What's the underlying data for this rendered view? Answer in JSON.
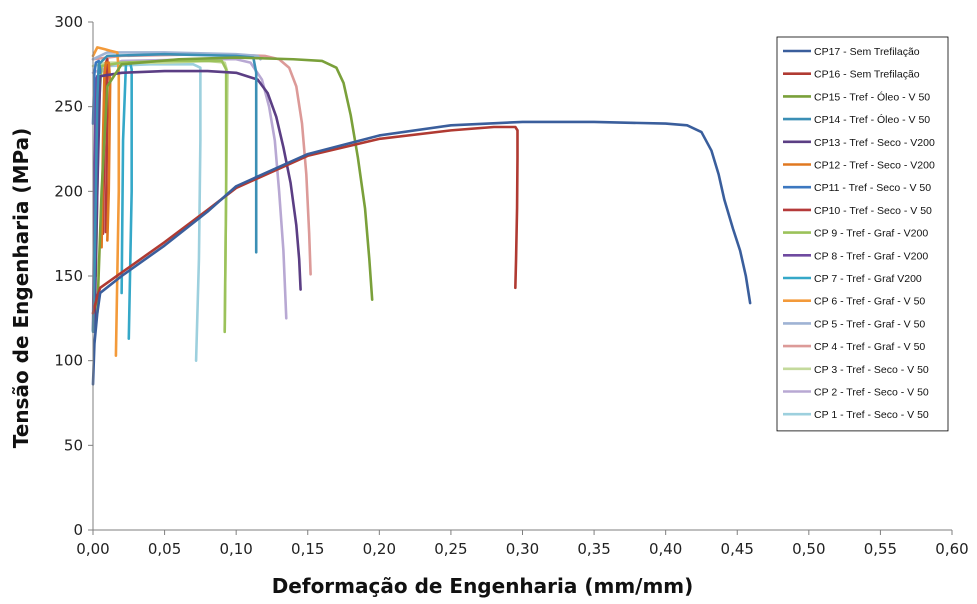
{
  "chart_data": {
    "type": "line",
    "title": "",
    "xlabel": "Deformação de Engenharia (mm/mm)",
    "ylabel": "Tensão de Engenharia (MPa)",
    "xlim": [
      0,
      0.6
    ],
    "ylim": [
      0,
      300
    ],
    "x_ticks": [
      "0,00",
      "0,05",
      "0,10",
      "0,15",
      "0,20",
      "0,25",
      "0,30",
      "0,35",
      "0,40",
      "0,45",
      "0,50",
      "0,55",
      "0,60"
    ],
    "y_ticks": [
      "0",
      "50",
      "100",
      "150",
      "200",
      "250",
      "300"
    ],
    "grid": false,
    "legend_position": "right",
    "series": [
      {
        "name": "CP17 - Sem Trefilação",
        "color": "#3A5E9C",
        "points": [
          [
            0.0,
            86
          ],
          [
            0.001,
            110
          ],
          [
            0.003,
            128
          ],
          [
            0.005,
            140
          ],
          [
            0.02,
            150
          ],
          [
            0.05,
            168
          ],
          [
            0.08,
            188
          ],
          [
            0.1,
            203
          ],
          [
            0.15,
            222
          ],
          [
            0.2,
            233
          ],
          [
            0.25,
            239
          ],
          [
            0.3,
            241
          ],
          [
            0.35,
            241
          ],
          [
            0.4,
            240
          ],
          [
            0.415,
            239
          ],
          [
            0.425,
            235
          ],
          [
            0.432,
            224
          ],
          [
            0.437,
            210
          ],
          [
            0.441,
            195
          ],
          [
            0.447,
            178
          ],
          [
            0.452,
            165
          ],
          [
            0.456,
            150
          ],
          [
            0.459,
            134
          ]
        ]
      },
      {
        "name": "CP16 - Sem Trefilação",
        "color": "#B03A32",
        "points": [
          [
            0.0,
            128
          ],
          [
            0.003,
            138
          ],
          [
            0.005,
            143
          ],
          [
            0.02,
            152
          ],
          [
            0.05,
            170
          ],
          [
            0.08,
            189
          ],
          [
            0.1,
            202
          ],
          [
            0.15,
            221
          ],
          [
            0.2,
            231
          ],
          [
            0.25,
            236
          ],
          [
            0.28,
            238
          ],
          [
            0.295,
            238
          ],
          [
            0.2965,
            236
          ],
          [
            0.2965,
            220
          ],
          [
            0.2962,
            190
          ],
          [
            0.2955,
            160
          ],
          [
            0.295,
            143
          ]
        ]
      },
      {
        "name": "CP15 - Tref - Óleo - V 50",
        "color": "#7AA03A",
        "points": [
          [
            0.003,
            128
          ],
          [
            0.006,
            200
          ],
          [
            0.01,
            262
          ],
          [
            0.02,
            275
          ],
          [
            0.06,
            278
          ],
          [
            0.1,
            279
          ],
          [
            0.14,
            278
          ],
          [
            0.16,
            277
          ],
          [
            0.17,
            273
          ],
          [
            0.175,
            264
          ],
          [
            0.18,
            245
          ],
          [
            0.185,
            220
          ],
          [
            0.19,
            190
          ],
          [
            0.193,
            160
          ],
          [
            0.195,
            136
          ]
        ]
      },
      {
        "name": "CP14 - Tref - Óleo - V 50",
        "color": "#3B8FB5",
        "points": [
          [
            0.0,
            117
          ],
          [
            0.001,
            150
          ],
          [
            0.002,
            200
          ],
          [
            0.003,
            255
          ],
          [
            0.004,
            275
          ],
          [
            0.01,
            280
          ],
          [
            0.05,
            281
          ],
          [
            0.1,
            280
          ],
          [
            0.112,
            279
          ],
          [
            0.114,
            270
          ],
          [
            0.114,
            220
          ],
          [
            0.114,
            164
          ]
        ]
      },
      {
        "name": "CP13 - Tref - Seco - V200",
        "color": "#5B3E84",
        "points": [
          [
            0.001,
            117
          ],
          [
            0.003,
            200
          ],
          [
            0.005,
            268
          ],
          [
            0.02,
            270
          ],
          [
            0.05,
            271
          ],
          [
            0.08,
            271
          ],
          [
            0.1,
            270
          ],
          [
            0.115,
            266
          ],
          [
            0.122,
            258
          ],
          [
            0.128,
            244
          ],
          [
            0.133,
            226
          ],
          [
            0.138,
            205
          ],
          [
            0.142,
            180
          ],
          [
            0.144,
            160
          ],
          [
            0.145,
            142
          ]
        ]
      },
      {
        "name": "CP12 - Tref - Seco - V200",
        "color": "#E07820",
        "points": [
          [
            0.006,
            167
          ],
          [
            0.007,
            230
          ],
          [
            0.008,
            270
          ],
          [
            0.009,
            276
          ],
          [
            0.011,
            276
          ],
          [
            0.012,
            265
          ],
          [
            0.011,
            200
          ],
          [
            0.01,
            171
          ]
        ]
      },
      {
        "name": "CP11 - Tref - Seco - V 50",
        "color": "#3C78C0",
        "points": [
          [
            0.0,
            240
          ],
          [
            0.001,
            270
          ],
          [
            0.002,
            276
          ],
          [
            0.004,
            277
          ],
          [
            0.005,
            272
          ],
          [
            0.005,
            270
          ]
        ]
      },
      {
        "name": "CP10 - Tref - Seco - V 50",
        "color": "#B53A3A",
        "points": [
          [
            0.007,
            175
          ],
          [
            0.008,
            240
          ],
          [
            0.009,
            276
          ],
          [
            0.01,
            278
          ],
          [
            0.01,
            250
          ],
          [
            0.009,
            176
          ]
        ]
      },
      {
        "name": "CP 9 - Tref - Graf - V200",
        "color": "#9BC25A",
        "points": [
          [
            0.002,
            150
          ],
          [
            0.004,
            250
          ],
          [
            0.006,
            274
          ],
          [
            0.02,
            276
          ],
          [
            0.05,
            277
          ],
          [
            0.08,
            277
          ],
          [
            0.09,
            277
          ],
          [
            0.093,
            272
          ],
          [
            0.093,
            200
          ],
          [
            0.092,
            117
          ]
        ]
      },
      {
        "name": "CP 8 - Tref - Graf - V200",
        "color": "#6F4AA0",
        "points": [
          [
            0.0,
            118
          ],
          [
            0.001,
            200
          ],
          [
            0.002,
            265
          ],
          [
            0.003,
            268
          ]
        ]
      },
      {
        "name": "CP 7 - Tref - Graf V200",
        "color": "#35A8C8",
        "points": [
          [
            0.02,
            140
          ],
          [
            0.021,
            230
          ],
          [
            0.023,
            275
          ],
          [
            0.026,
            276
          ],
          [
            0.027,
            272
          ],
          [
            0.027,
            200
          ],
          [
            0.025,
            113
          ]
        ]
      },
      {
        "name": "CP 6 - Tref - Graf - V 50",
        "color": "#F39A3A",
        "points": [
          [
            0.0,
            280
          ],
          [
            0.003,
            285
          ],
          [
            0.008,
            284
          ],
          [
            0.012,
            283
          ],
          [
            0.017,
            282
          ],
          [
            0.018,
            270
          ],
          [
            0.018,
            200
          ],
          [
            0.016,
            103
          ]
        ]
      },
      {
        "name": "CP 5 - Tref - Graf - V 50",
        "color": "#9FB3D4",
        "points": [
          [
            0.0,
            278
          ],
          [
            0.01,
            282
          ],
          [
            0.05,
            282
          ],
          [
            0.1,
            281
          ],
          [
            0.115,
            280
          ],
          [
            0.117,
            278
          ]
        ]
      },
      {
        "name": "CP 4 - Tref - Graf - V 50",
        "color": "#DC9A98",
        "points": [
          [
            0.0,
            278
          ],
          [
            0.02,
            280
          ],
          [
            0.08,
            281
          ],
          [
            0.12,
            280
          ],
          [
            0.13,
            278
          ],
          [
            0.137,
            273
          ],
          [
            0.142,
            262
          ],
          [
            0.146,
            240
          ],
          [
            0.149,
            210
          ],
          [
            0.151,
            175
          ],
          [
            0.152,
            151
          ]
        ]
      },
      {
        "name": "CP 3 - Tref - Seco - V 50",
        "color": "#C4DA9C",
        "points": [
          [
            0.0,
            274
          ],
          [
            0.01,
            276
          ],
          [
            0.05,
            276
          ],
          [
            0.08,
            277
          ],
          [
            0.092,
            276
          ],
          [
            0.094,
            270
          ],
          [
            0.093,
            200
          ],
          [
            0.092,
            118
          ]
        ]
      },
      {
        "name": "CP 2 - Tref - Seco - V 50",
        "color": "#B8A8D3",
        "points": [
          [
            0.0,
            270
          ],
          [
            0.02,
            277
          ],
          [
            0.08,
            278
          ],
          [
            0.1,
            278
          ],
          [
            0.11,
            276
          ],
          [
            0.118,
            266
          ],
          [
            0.123,
            250
          ],
          [
            0.127,
            230
          ],
          [
            0.13,
            200
          ],
          [
            0.133,
            165
          ],
          [
            0.135,
            125
          ]
        ]
      },
      {
        "name": "CP 1 - Tref - Seco - V 50",
        "color": "#9DD0DE",
        "points": [
          [
            0.001,
            200
          ],
          [
            0.003,
            268
          ],
          [
            0.01,
            274
          ],
          [
            0.04,
            275
          ],
          [
            0.07,
            275
          ],
          [
            0.075,
            273
          ],
          [
            0.075,
            230
          ],
          [
            0.074,
            160
          ],
          [
            0.072,
            100
          ]
        ]
      }
    ]
  }
}
